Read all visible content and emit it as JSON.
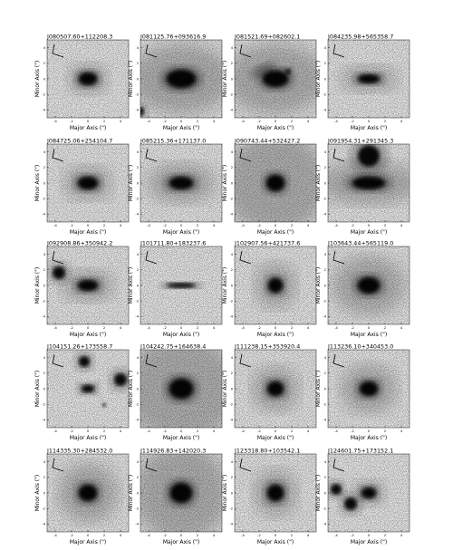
{
  "figure": {
    "x_axis_label": "Major Axis (\")",
    "y_axis_label": "Minor Axis (\")",
    "x_ticks": [
      "-4",
      "-2",
      "0",
      "2",
      "4"
    ],
    "y_ticks": [
      "4",
      "2",
      "0",
      "-2",
      "-4"
    ],
    "panels": [
      {
        "title": "J080507.60+112208.3"
      },
      {
        "title": "J081125.76+093616.9"
      },
      {
        "title": "J081521.69+082602.1"
      },
      {
        "title": "J084235.98+565358.7"
      },
      {
        "title": "J084725.06+254104.7"
      },
      {
        "title": "J085215.36+171137.0"
      },
      {
        "title": "J090743.44+532427.2"
      },
      {
        "title": "J091954.31+291345.3"
      },
      {
        "title": "J092908.86+350942.2"
      },
      {
        "title": "J101711.80+183237.6"
      },
      {
        "title": "J102907.56+421737.6"
      },
      {
        "title": "J103643.44+565119.0"
      },
      {
        "title": "J104151.26+173558.7"
      },
      {
        "title": "J104242.75+164638.4"
      },
      {
        "title": "J111238.15+353920.4"
      },
      {
        "title": "J113236.10+340453.0"
      },
      {
        "title": "J114335.30+284532.0"
      },
      {
        "title": "J114926.83+142020.3"
      },
      {
        "title": "J123318.80+103542.1"
      },
      {
        "title": "J124601.75+173152.1"
      }
    ]
  }
}
